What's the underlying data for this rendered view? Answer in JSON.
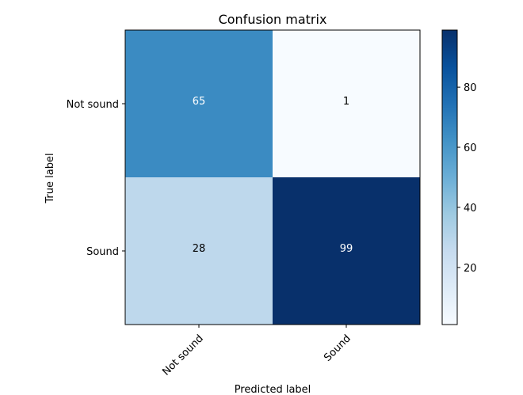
{
  "chart_data": {
    "type": "heatmap",
    "title": "Confusion matrix",
    "xlabel": "Predicted label",
    "ylabel": "True label",
    "x_categories": [
      "Not sound",
      "Sound"
    ],
    "y_categories": [
      "Not sound",
      "Sound"
    ],
    "values": [
      [
        65,
        1
      ],
      [
        28,
        99
      ]
    ],
    "colormap": "Blues",
    "colorbar": {
      "min": 1,
      "max": 99,
      "ticks": [
        20,
        40,
        60,
        80
      ]
    },
    "text_colors": {
      "light": "#ffffff",
      "dark": "#000000"
    },
    "grid": false,
    "legend": "colorbar-right"
  }
}
